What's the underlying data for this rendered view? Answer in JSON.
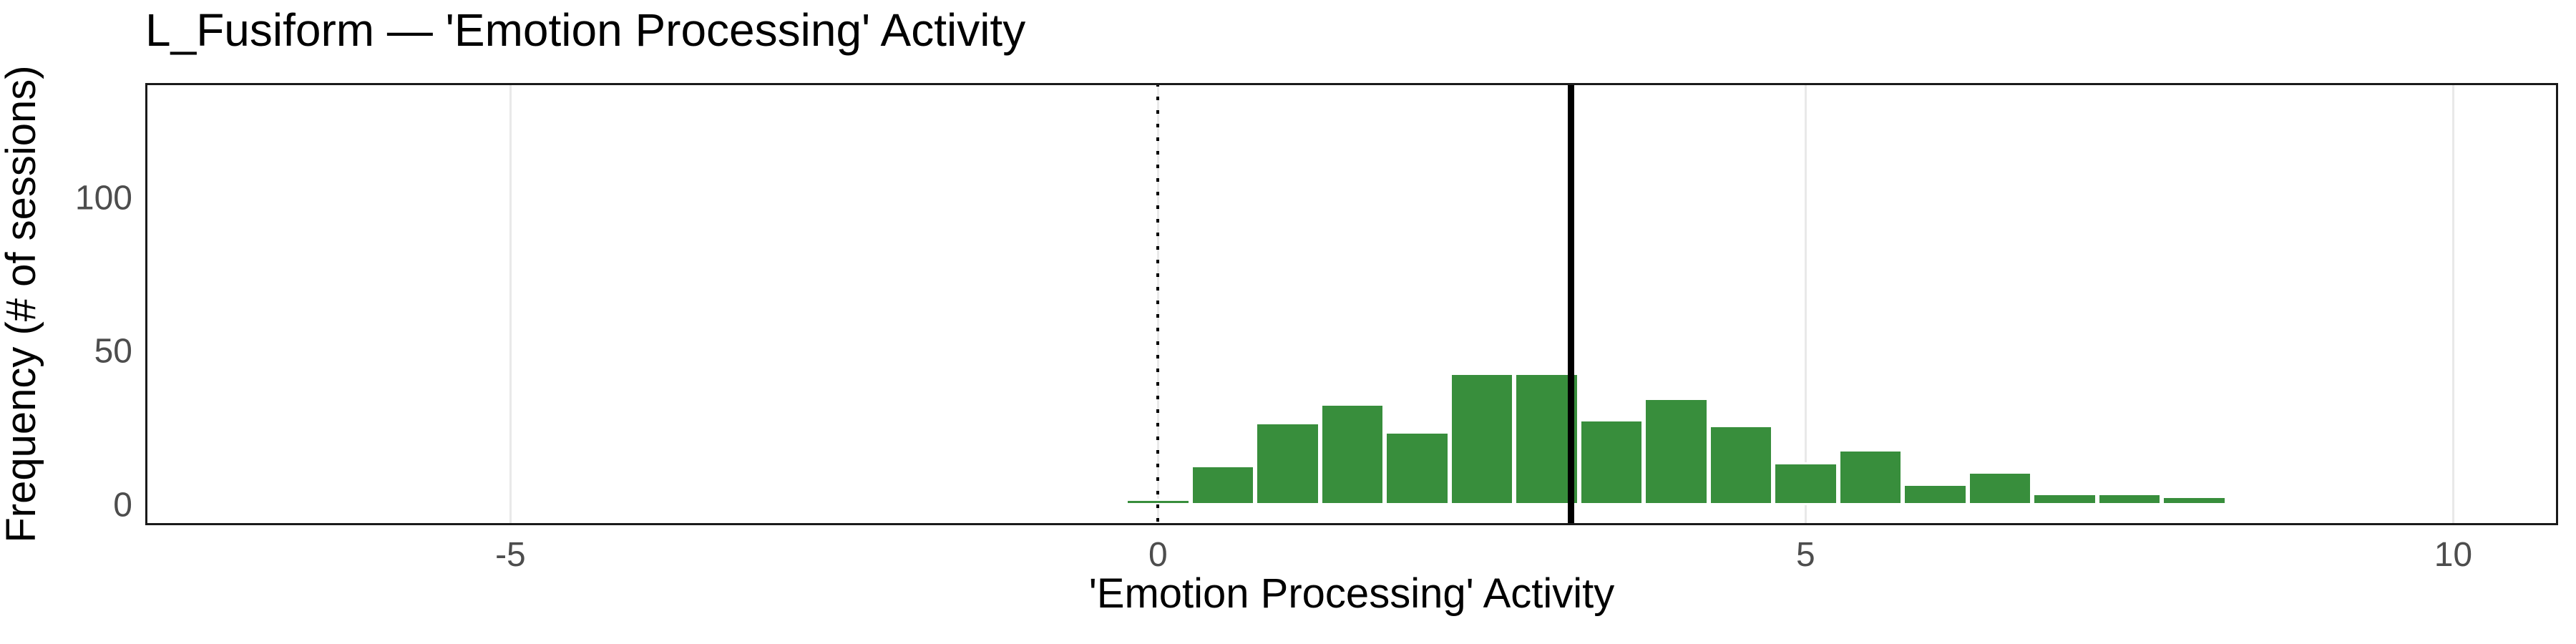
{
  "title": "L_Fusiform — 'Emotion Processing' Activity",
  "x_axis": {
    "label": "'Emotion Processing' Activity",
    "ticks": [
      -5,
      0,
      5,
      10
    ],
    "tick_labels": [
      "-5",
      "0",
      "5",
      "10"
    ],
    "domain": [
      -7.82,
      10.81
    ],
    "gridlines": true
  },
  "y_axis": {
    "label": "Frequency (# of sessions)",
    "ticks": [
      0,
      50,
      100
    ],
    "tick_labels": [
      "0",
      "50",
      "100"
    ],
    "domain": [
      -6.6,
      137.5
    ],
    "gridlines": false
  },
  "chart_data": {
    "type": "bar",
    "subtype": "histogram",
    "title": "L_Fusiform — 'Emotion Processing' Activity",
    "xlabel": "'Emotion Processing' Activity",
    "ylabel": "Frequency (# of sessions)",
    "bin_width": 0.5,
    "bin_centers": [
      0,
      0.5,
      1,
      1.5,
      2,
      2.5,
      3,
      3.5,
      4,
      4.5,
      5,
      5.5,
      6,
      6.5,
      7,
      7.5,
      8
    ],
    "counts": [
      2,
      13,
      27,
      33,
      24,
      43,
      43,
      28,
      35,
      26,
      14,
      18,
      7,
      11,
      4,
      4,
      3
    ],
    "xlim": [
      -7.82,
      10.81
    ],
    "ylim": [
      -6.6,
      137.5
    ],
    "legend": "none",
    "grid": "vertical-major-only",
    "reference_lines": [
      {
        "name": "zero-line",
        "x": 0,
        "style": "dotted",
        "color": "#000000"
      },
      {
        "name": "mean-line",
        "x": 3.19,
        "style": "solid",
        "color": "#000000"
      }
    ]
  },
  "colors": {
    "bar_fill": "#388E3C",
    "bar_border": "#ffffff",
    "gridline": "#e9e9e9",
    "panel_border": "#1a1a1a",
    "tick_label": "#4d4d4d",
    "text": "#000000",
    "background": "#ffffff"
  }
}
